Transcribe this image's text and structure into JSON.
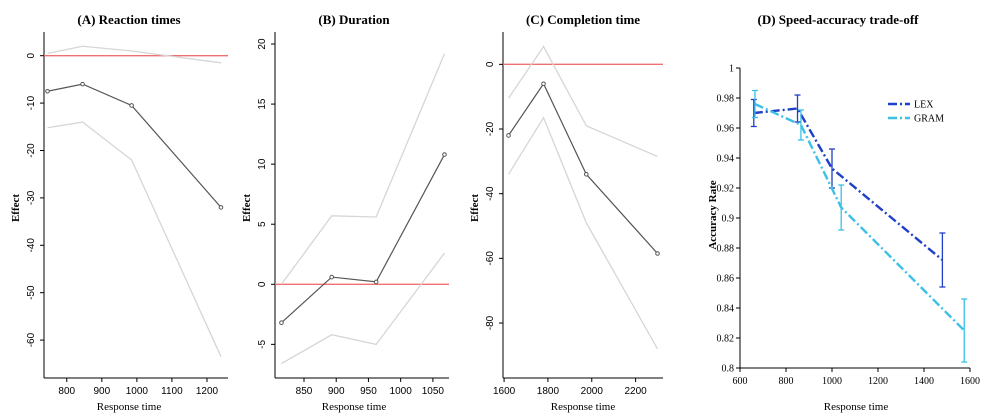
{
  "colors": {
    "estimate": "#555555",
    "ci": "#d6d6d6",
    "reference": "#f07070",
    "lex": "#1f3fc8",
    "gram": "#3cc0e6",
    "axis": "#000000"
  },
  "chart_data": [
    {
      "type": "line",
      "title": "(A) Reaction times",
      "xlabel": "Response time",
      "ylabel": "Effect",
      "xlim": [
        735,
        1260
      ],
      "ylim": [
        -68,
        5
      ],
      "xticks": [
        800,
        900,
        1000,
        1100,
        1200
      ],
      "yticks": [
        0,
        -10,
        -20,
        -30,
        -40,
        -50,
        -60
      ],
      "reference_y": 0,
      "series": [
        {
          "role": "estimate",
          "x": [
            745,
            845,
            985,
            1240
          ],
          "y": [
            -7.5,
            -6,
            -10.5,
            -32
          ]
        },
        {
          "role": "upper",
          "x": [
            745,
            845,
            985,
            1240
          ],
          "y": [
            0.5,
            2,
            1,
            -1.5
          ]
        },
        {
          "role": "lower",
          "x": [
            745,
            845,
            985,
            1240
          ],
          "y": [
            -15.2,
            -14,
            -22,
            -63.5
          ]
        }
      ]
    },
    {
      "type": "line",
      "title": "(B) Duration",
      "xlabel": "Response time",
      "ylabel": "Effect",
      "xlim": [
        805,
        1075
      ],
      "ylim": [
        -7.8,
        21
      ],
      "xticks": [
        850,
        900,
        950,
        1000,
        1050
      ],
      "yticks": [
        20,
        15,
        10,
        5,
        0,
        -5
      ],
      "reference_y": 0,
      "series": [
        {
          "role": "estimate",
          "x": [
            815,
            893,
            962,
            1068
          ],
          "y": [
            -3.2,
            0.6,
            0.2,
            10.8
          ]
        },
        {
          "role": "upper",
          "x": [
            815,
            893,
            962,
            1068
          ],
          "y": [
            0,
            5.7,
            5.6,
            19.2
          ]
        },
        {
          "role": "lower",
          "x": [
            815,
            893,
            962,
            1068
          ],
          "y": [
            -6.6,
            -4.2,
            -5,
            2.6
          ]
        }
      ]
    },
    {
      "type": "line",
      "title": "(C) Completion time",
      "xlabel": "Response time",
      "ylabel": "Effect",
      "xlim": [
        1595,
        2325
      ],
      "ylim": [
        -97,
        10
      ],
      "xticks": [
        1600,
        1800,
        2000,
        2200
      ],
      "yticks": [
        0,
        -20,
        -40,
        -60,
        -80
      ],
      "reference_y": 0,
      "series": [
        {
          "role": "estimate",
          "x": [
            1620,
            1780,
            1975,
            2300
          ],
          "y": [
            -22,
            -6,
            -34,
            -58.5
          ]
        },
        {
          "role": "upper",
          "x": [
            1620,
            1780,
            1975,
            2300
          ],
          "y": [
            -10.5,
            5.5,
            -19,
            -28.5
          ]
        },
        {
          "role": "lower",
          "x": [
            1620,
            1780,
            1975,
            2300
          ],
          "y": [
            -34,
            -16.5,
            -49,
            -88
          ]
        }
      ]
    },
    {
      "type": "line",
      "title": "(D) Speed-accuracy trade-off",
      "xlabel": "Response time",
      "ylabel": "Accuracy Rate",
      "xlim": [
        600,
        1600
      ],
      "ylim": [
        0.8,
        1
      ],
      "xticks": [
        600,
        800,
        1000,
        1200,
        1400,
        1600
      ],
      "yticks": [
        1,
        0.98,
        0.96,
        0.94,
        0.92,
        0.9,
        0.88,
        0.86,
        0.84,
        0.82,
        0.8
      ],
      "grid": false,
      "legend_position": "top-right",
      "series": [
        {
          "name": "LEX",
          "color_key": "lex",
          "x": [
            660,
            850,
            1000,
            1480
          ],
          "y": [
            0.97,
            0.973,
            0.933,
            0.872
          ],
          "err": [
            0.009,
            0.009,
            0.013,
            0.018
          ]
        },
        {
          "name": "GRAM",
          "color_key": "gram",
          "x": [
            665,
            865,
            1040,
            1575
          ],
          "y": [
            0.976,
            0.962,
            0.907,
            0.825
          ],
          "err": [
            0.009,
            0.01,
            0.015,
            0.021
          ]
        }
      ]
    }
  ]
}
